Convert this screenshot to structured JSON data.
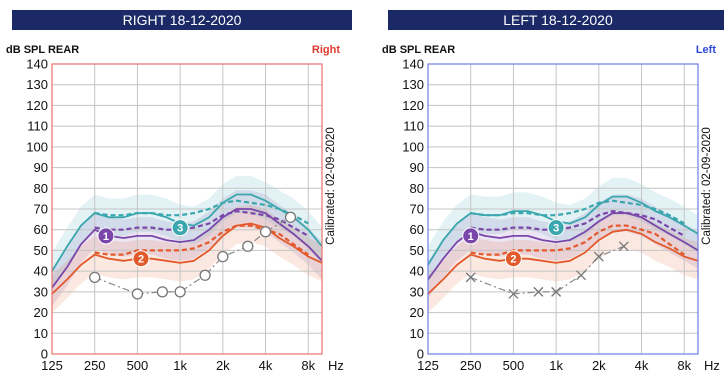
{
  "panels": [
    {
      "id": "right",
      "title": "RIGHT 18-12-2020",
      "unit_label": "dB SPL REAR",
      "side_label": "Right",
      "side_color": "#e03b2f",
      "frame_color": "#e8736c",
      "calibrated": "Calibrated: 02-09-2020",
      "marker": "circle"
    },
    {
      "id": "left",
      "title": "LEFT 18-12-2020",
      "unit_label": "dB SPL REAR",
      "side_label": "Left",
      "side_color": "#2d4ad8",
      "frame_color": "#6f7fe6",
      "calibrated": "Calibrated: 02-09-2020",
      "marker": "cross"
    }
  ],
  "colors": {
    "curve1": "#7b46a9",
    "curve2": "#e25a2c",
    "curve3": "#3aa6ae",
    "threshold": "#8a8a8a",
    "grid": "#c4c4c4"
  },
  "chart_data": [
    {
      "type": "line",
      "title": "RIGHT 18-12-2020",
      "xlabel": "Hz",
      "ylabel": "dB SPL REAR",
      "x_scale": "log",
      "xlim": [
        125,
        10000
      ],
      "ylim": [
        0,
        140
      ],
      "x_ticks": [
        125,
        250,
        500,
        1000,
        2000,
        4000,
        8000
      ],
      "x_tick_labels": [
        "125",
        "250",
        "500",
        "1k",
        "2k",
        "4k",
        "8k"
      ],
      "y_ticks": [
        0,
        10,
        20,
        30,
        40,
        50,
        60,
        70,
        80,
        90,
        100,
        110,
        120,
        130,
        140
      ],
      "y_tick_labels": [
        "0",
        "10",
        "20",
        "30",
        "40",
        "50",
        "60",
        "70",
        "80",
        "90",
        "100",
        "110",
        "120",
        "130",
        "140"
      ],
      "grid": true,
      "series": [
        {
          "name": "1",
          "role": "measured",
          "color": "#7b46a9",
          "x": [
            125,
            160,
            200,
            250,
            315,
            400,
            500,
            630,
            800,
            1000,
            1250,
            1600,
            2000,
            2500,
            3150,
            4000,
            5000,
            6300,
            8000,
            10000
          ],
          "y": [
            32,
            42,
            53,
            60,
            57,
            56,
            57,
            57,
            55,
            54,
            55,
            60,
            66,
            70,
            70,
            68,
            63,
            58,
            52,
            45
          ]
        },
        {
          "name": "1",
          "role": "target",
          "color": "#7b46a9",
          "x": [
            250,
            315,
            400,
            500,
            630,
            800,
            1000,
            1250,
            1600,
            2000,
            2500,
            3150,
            4000,
            5000,
            6300,
            8000
          ],
          "y": [
            61,
            60,
            60,
            61,
            61,
            60,
            60,
            61,
            63,
            67,
            69,
            68,
            67,
            65,
            61,
            57
          ]
        },
        {
          "name": "2",
          "role": "measured",
          "color": "#e25a2c",
          "x": [
            125,
            160,
            200,
            250,
            315,
            400,
            500,
            630,
            800,
            1000,
            1250,
            1600,
            2000,
            2500,
            3150,
            4000,
            5000,
            6300,
            8000,
            10000
          ],
          "y": [
            29,
            36,
            43,
            48,
            46,
            45,
            46,
            46,
            45,
            44,
            45,
            50,
            57,
            62,
            63,
            61,
            56,
            52,
            47,
            44
          ]
        },
        {
          "name": "2",
          "role": "target",
          "color": "#e25a2c",
          "x": [
            250,
            315,
            400,
            500,
            630,
            800,
            1000,
            1250,
            1600,
            2000,
            2500,
            3150,
            4000,
            5000,
            6300,
            8000
          ],
          "y": [
            49,
            48,
            48,
            50,
            50,
            50,
            50,
            51,
            54,
            59,
            62,
            62,
            60,
            58,
            53,
            48
          ]
        },
        {
          "name": "3",
          "role": "measured",
          "color": "#3aa6ae",
          "x": [
            125,
            160,
            200,
            250,
            315,
            400,
            500,
            630,
            800,
            1000,
            1250,
            1600,
            2000,
            2500,
            3150,
            4000,
            5000,
            6300,
            8000,
            10000
          ],
          "y": [
            40,
            52,
            62,
            68,
            66,
            66,
            68,
            68,
            66,
            63,
            62,
            66,
            73,
            77,
            77,
            74,
            70,
            66,
            60,
            52
          ]
        },
        {
          "name": "3",
          "role": "target",
          "color": "#3aa6ae",
          "x": [
            250,
            315,
            400,
            500,
            630,
            800,
            1000,
            1250,
            1600,
            2000,
            2500,
            3150,
            4000,
            5000,
            6300,
            8000
          ],
          "y": [
            68,
            67,
            67,
            68,
            68,
            67,
            67,
            68,
            70,
            73,
            74,
            73,
            72,
            70,
            67,
            63
          ]
        },
        {
          "name": "",
          "role": "threshold",
          "color": "#8a8a8a",
          "x": [
            250,
            500,
            750,
            1000,
            1500,
            2000,
            3000,
            4000,
            6000
          ],
          "y": [
            37,
            29,
            30,
            30,
            38,
            47,
            52,
            59,
            66
          ]
        }
      ],
      "labels": [
        {
          "text": "1",
          "x": 300,
          "y": 57
        },
        {
          "text": "2",
          "x": 530,
          "y": 46
        },
        {
          "text": "3",
          "x": 1000,
          "y": 61
        }
      ]
    },
    {
      "type": "line",
      "title": "LEFT 18-12-2020",
      "xlabel": "Hz",
      "ylabel": "dB SPL REAR",
      "x_scale": "log",
      "xlim": [
        125,
        10000
      ],
      "ylim": [
        0,
        140
      ],
      "x_ticks": [
        125,
        250,
        500,
        1000,
        2000,
        4000,
        8000
      ],
      "x_tick_labels": [
        "125",
        "250",
        "500",
        "1k",
        "2k",
        "4k",
        "8k"
      ],
      "y_ticks": [
        0,
        10,
        20,
        30,
        40,
        50,
        60,
        70,
        80,
        90,
        100,
        110,
        120,
        130,
        140
      ],
      "y_tick_labels": [
        "0",
        "10",
        "20",
        "30",
        "40",
        "50",
        "60",
        "70",
        "80",
        "90",
        "100",
        "110",
        "120",
        "130",
        "140"
      ],
      "grid": true,
      "series": [
        {
          "name": "1",
          "role": "measured",
          "color": "#7b46a9",
          "x": [
            125,
            160,
            200,
            250,
            315,
            400,
            500,
            630,
            800,
            1000,
            1250,
            1600,
            2000,
            2500,
            3150,
            4000,
            5000,
            6300,
            8000,
            10000
          ],
          "y": [
            36,
            46,
            54,
            59,
            57,
            56,
            57,
            57,
            55,
            54,
            55,
            59,
            64,
            68,
            68,
            66,
            62,
            58,
            54,
            50
          ]
        },
        {
          "name": "1",
          "role": "target",
          "color": "#7b46a9",
          "x": [
            250,
            315,
            400,
            500,
            630,
            800,
            1000,
            1250,
            1600,
            2000,
            2500,
            3150,
            4000,
            5000,
            6300,
            8000
          ],
          "y": [
            61,
            60,
            60,
            61,
            61,
            60,
            60,
            61,
            63,
            67,
            69,
            68,
            67,
            65,
            61,
            57
          ]
        },
        {
          "name": "2",
          "role": "measured",
          "color": "#e25a2c",
          "x": [
            125,
            160,
            200,
            250,
            315,
            400,
            500,
            630,
            800,
            1000,
            1250,
            1600,
            2000,
            2500,
            3150,
            4000,
            5000,
            6300,
            8000,
            10000
          ],
          "y": [
            29,
            36,
            43,
            48,
            46,
            45,
            46,
            46,
            45,
            44,
            45,
            49,
            55,
            59,
            60,
            58,
            54,
            51,
            47,
            45
          ]
        },
        {
          "name": "2",
          "role": "target",
          "color": "#e25a2c",
          "x": [
            250,
            315,
            400,
            500,
            630,
            800,
            1000,
            1250,
            1600,
            2000,
            2500,
            3150,
            4000,
            5000,
            6300,
            8000
          ],
          "y": [
            49,
            48,
            48,
            50,
            50,
            50,
            50,
            51,
            54,
            59,
            62,
            62,
            60,
            58,
            53,
            48
          ]
        },
        {
          "name": "3",
          "role": "measured",
          "color": "#3aa6ae",
          "x": [
            125,
            160,
            200,
            250,
            315,
            400,
            500,
            630,
            800,
            1000,
            1250,
            1600,
            2000,
            2500,
            3150,
            4000,
            5000,
            6300,
            8000,
            10000
          ],
          "y": [
            43,
            55,
            63,
            68,
            67,
            67,
            69,
            69,
            67,
            64,
            63,
            66,
            72,
            76,
            76,
            73,
            69,
            66,
            62,
            58
          ]
        },
        {
          "name": "3",
          "role": "target",
          "color": "#3aa6ae",
          "x": [
            250,
            315,
            400,
            500,
            630,
            800,
            1000,
            1250,
            1600,
            2000,
            2500,
            3150,
            4000,
            5000,
            6300,
            8000
          ],
          "y": [
            68,
            67,
            67,
            68,
            68,
            67,
            67,
            68,
            70,
            73,
            74,
            73,
            72,
            70,
            67,
            63
          ]
        },
        {
          "name": "",
          "role": "threshold",
          "color": "#8a8a8a",
          "x": [
            250,
            500,
            750,
            1000,
            1500,
            2000,
            3000
          ],
          "y": [
            37,
            29,
            30,
            30,
            38,
            47,
            52
          ]
        }
      ],
      "labels": [
        {
          "text": "1",
          "x": 250,
          "y": 57
        },
        {
          "text": "2",
          "x": 500,
          "y": 46
        },
        {
          "text": "3",
          "x": 1000,
          "y": 61
        }
      ]
    }
  ]
}
